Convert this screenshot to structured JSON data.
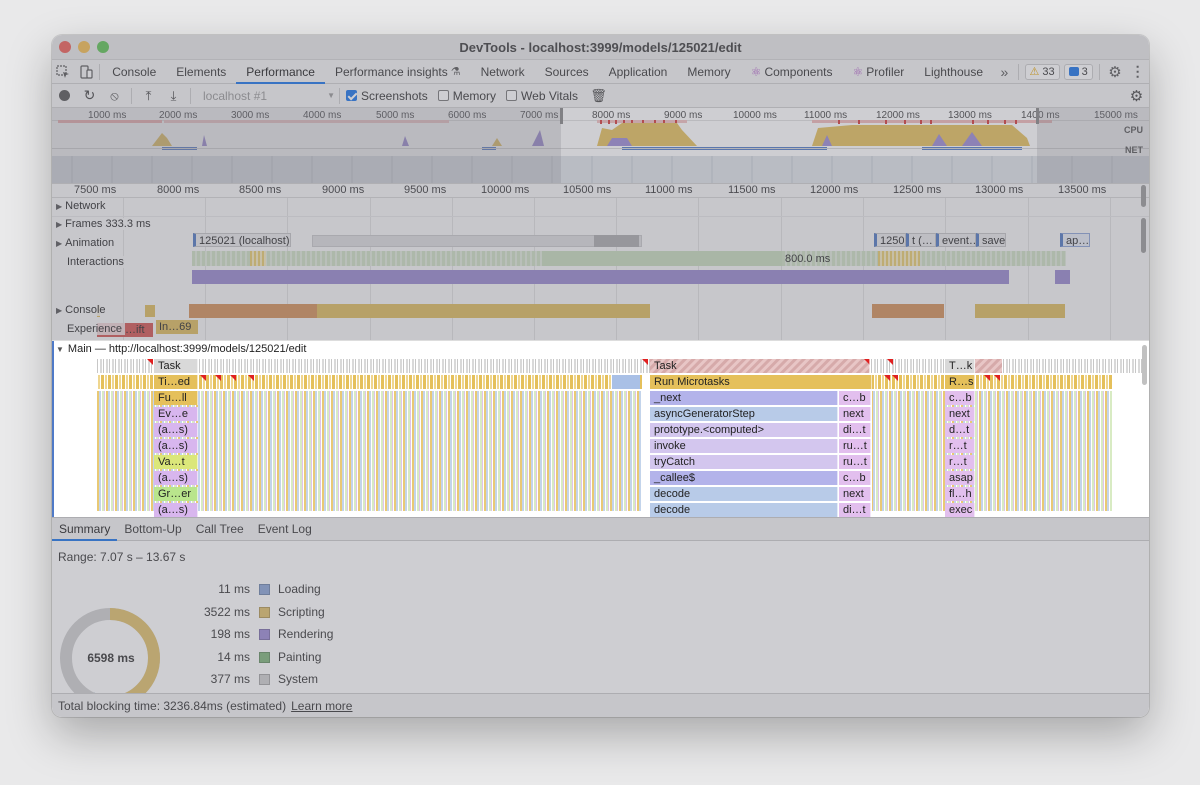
{
  "window": {
    "title": "DevTools - localhost:3999/models/125021/edit",
    "traffic_colors": [
      "#ee5f57",
      "#f4bd4f",
      "#5fc454"
    ]
  },
  "tabs": [
    {
      "label": "Console",
      "active": false
    },
    {
      "label": "Elements",
      "active": false
    },
    {
      "label": "Performance",
      "active": true
    },
    {
      "label": "Performance insights",
      "active": false
    },
    {
      "label": "Network",
      "active": false
    },
    {
      "label": "Sources",
      "active": false
    },
    {
      "label": "Application",
      "active": false
    },
    {
      "label": "Memory",
      "active": false
    },
    {
      "label": "Components",
      "active": false
    },
    {
      "label": "Profiler",
      "active": false
    },
    {
      "label": "Lighthouse",
      "active": false
    }
  ],
  "badges": {
    "warnings": "33",
    "messages": "3"
  },
  "toolbar": {
    "target_select": "localhost #1",
    "screenshots_label": "Screenshots",
    "screenshots_checked": true,
    "memory_label": "Memory",
    "memory_checked": false,
    "webvitals_label": "Web Vitals",
    "webvitals_checked": false
  },
  "overview": {
    "ticks": [
      "1000 ms",
      "2000 ms",
      "3000 ms",
      "4000 ms",
      "5000 ms",
      "6000 ms",
      "7000 ms",
      "8000 ms",
      "9000 ms",
      "10000 ms",
      "11000 ms",
      "12000 ms",
      "13000 ms",
      "140",
      "0 ms",
      "15000 ms"
    ],
    "cpu_label": "CPU",
    "net_label": "NET"
  },
  "ruler": {
    "ticks": [
      "7500 ms",
      "8000 ms",
      "8500 ms",
      "9000 ms",
      "9500 ms",
      "10000 ms",
      "10500 ms",
      "11000 ms",
      "11500 ms",
      "12000 ms",
      "12500 ms",
      "13000 ms",
      "13500 ms"
    ]
  },
  "tracks": {
    "network": {
      "label": "Network",
      "items": [
        "125021 (localhost)",
        "1250",
        "t (…",
        "event…",
        "save…",
        "ap…"
      ]
    },
    "frames": {
      "label": "Frames",
      "first": "333.3 ms",
      "second": "800.0 ms"
    },
    "animation": {
      "label": "Animation"
    },
    "interactions": {
      "label": "Interactions",
      "item": "In…69"
    },
    "console": {
      "label": "Console"
    },
    "experience": {
      "label": "Experience",
      "item": "…ift"
    }
  },
  "main": {
    "header": "Main — http://localhost:3999/models/125021/edit",
    "left_stack": [
      "Task",
      "Ti…ed",
      "Fu…ll",
      "Ev…e",
      "(a…s)",
      "(a…s)",
      "Va…t",
      "(a…s)",
      "Gr…er",
      "(a…s)"
    ],
    "center_stack": [
      "Task",
      "Run Microtasks",
      "_next",
      "asyncGeneratorStep",
      "prototype.<computed>",
      "invoke",
      "tryCatch",
      "_callee$",
      "decode",
      "decode"
    ],
    "center_right": [
      "c…b",
      "next",
      "di…t",
      "ru…t",
      "ru…t",
      "c…b",
      "next",
      "di…t"
    ],
    "right_stack": [
      "T…k",
      "R…s",
      "c…b",
      "next",
      "d…t",
      "r…t",
      "r…t",
      "asap",
      "fl…h",
      "exec"
    ]
  },
  "bottom_tabs": [
    {
      "label": "Summary",
      "active": true
    },
    {
      "label": "Bottom-Up",
      "active": false
    },
    {
      "label": "Call Tree",
      "active": false
    },
    {
      "label": "Event Log",
      "active": false
    }
  ],
  "summary": {
    "range": "Range: 7.07 s – 13.67 s",
    "total": "6598 ms",
    "items": [
      {
        "ms": "11 ms",
        "label": "Loading",
        "color": "#8aa5d6"
      },
      {
        "ms": "3522 ms",
        "label": "Scripting",
        "color": "#e0c06a"
      },
      {
        "ms": "198 ms",
        "label": "Rendering",
        "color": "#9b8ad4"
      },
      {
        "ms": "14 ms",
        "label": "Painting",
        "color": "#7fb47a"
      },
      {
        "ms": "377 ms",
        "label": "System",
        "color": "#cfcfcf"
      }
    ]
  },
  "status": {
    "text": "Total blocking time: 3236.84ms (estimated)",
    "link": "Learn more"
  }
}
